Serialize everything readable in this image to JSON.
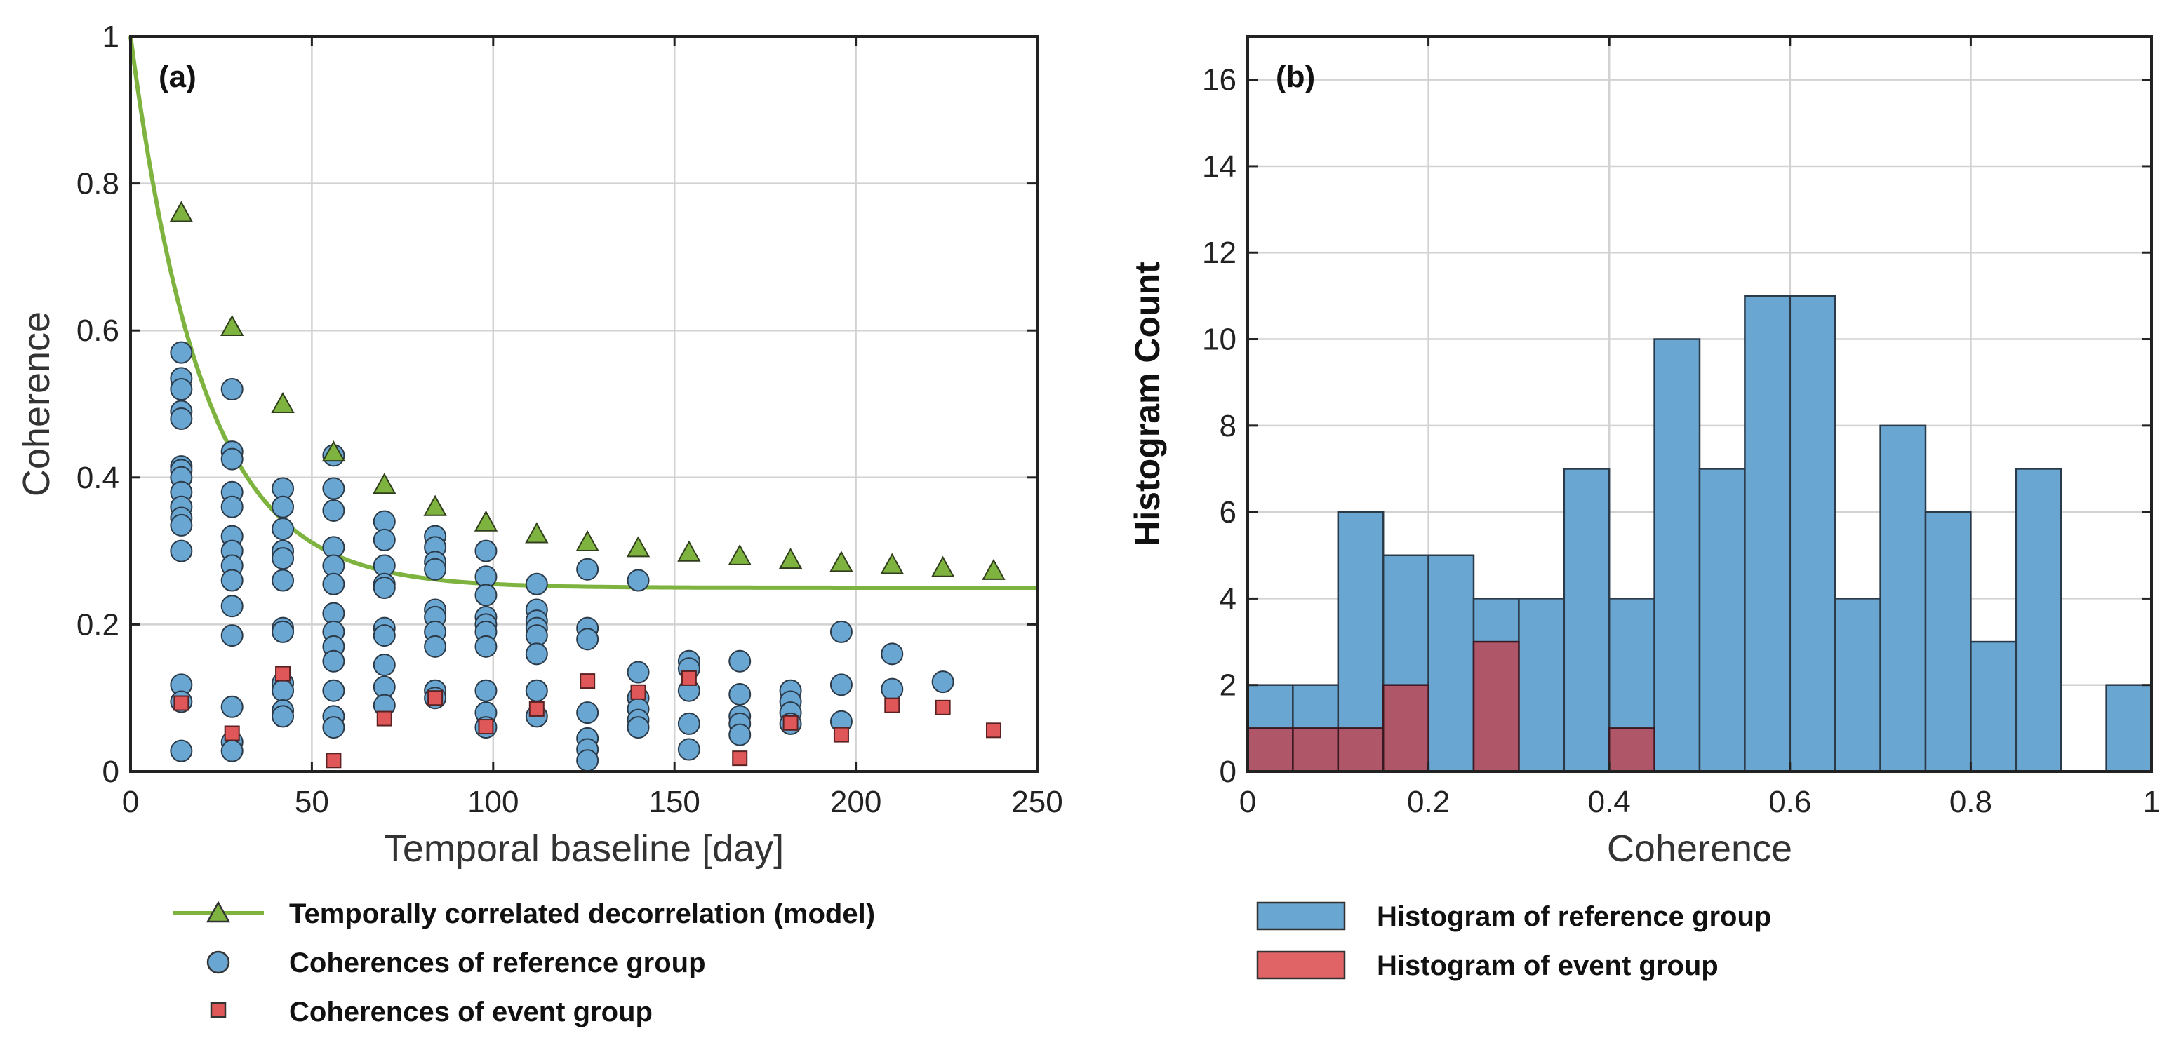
{
  "chart_data": [
    {
      "type": "scatter",
      "panel_label": "(a)",
      "xlabel": "Temporal baseline [day]",
      "ylabel": "Coherence",
      "xlim": [
        0,
        250
      ],
      "ylim": [
        0,
        1
      ],
      "xticks": [
        0,
        50,
        100,
        150,
        200,
        250
      ],
      "yticks": [
        0,
        0.2,
        0.4,
        0.6,
        0.8,
        1
      ],
      "ytick_labels": [
        "0",
        "0.2",
        "0.4",
        "0.6",
        "0.8",
        "1"
      ],
      "grid": true,
      "legend_position": "below",
      "colors": {
        "model": "#7fb33f",
        "reference": "#6aa6d2",
        "event": "#e0575a"
      },
      "series": [
        {
          "name": "Temporally correlated decorrelation (model)",
          "kind": "model-line",
          "markers_x": [
            14,
            28,
            42,
            56,
            70,
            84,
            98,
            112,
            126,
            140,
            154,
            168,
            182,
            196,
            210,
            224,
            238
          ],
          "markers_y": [
            0.76,
            0.605,
            0.5,
            0.434,
            0.39,
            0.36,
            0.339,
            0.323,
            0.312,
            0.304,
            0.298,
            0.293,
            0.288,
            0.284,
            0.281,
            0.277,
            0.273
          ]
        },
        {
          "name": "Coherences of reference group",
          "kind": "circle",
          "points": [
            [
              14,
              0.57
            ],
            [
              14,
              0.535
            ],
            [
              14,
              0.52
            ],
            [
              14,
              0.49
            ],
            [
              14,
              0.48
            ],
            [
              14,
              0.415
            ],
            [
              14,
              0.41
            ],
            [
              14,
              0.4
            ],
            [
              14,
              0.38
            ],
            [
              14,
              0.36
            ],
            [
              14,
              0.345
            ],
            [
              14,
              0.335
            ],
            [
              14,
              0.3
            ],
            [
              14,
              0.118
            ],
            [
              14,
              0.095
            ],
            [
              14,
              0.028
            ],
            [
              28,
              0.52
            ],
            [
              28,
              0.435
            ],
            [
              28,
              0.425
            ],
            [
              28,
              0.38
            ],
            [
              28,
              0.36
            ],
            [
              28,
              0.32
            ],
            [
              28,
              0.3
            ],
            [
              28,
              0.28
            ],
            [
              28,
              0.26
            ],
            [
              28,
              0.225
            ],
            [
              28,
              0.185
            ],
            [
              28,
              0.088
            ],
            [
              28,
              0.04
            ],
            [
              28,
              0.028
            ],
            [
              42,
              0.385
            ],
            [
              42,
              0.36
            ],
            [
              42,
              0.33
            ],
            [
              42,
              0.3
            ],
            [
              42,
              0.29
            ],
            [
              42,
              0.26
            ],
            [
              42,
              0.195
            ],
            [
              42,
              0.19
            ],
            [
              42,
              0.12
            ],
            [
              42,
              0.11
            ],
            [
              42,
              0.083
            ],
            [
              42,
              0.075
            ],
            [
              56,
              0.43
            ],
            [
              56,
              0.385
            ],
            [
              56,
              0.355
            ],
            [
              56,
              0.305
            ],
            [
              56,
              0.28
            ],
            [
              56,
              0.255
            ],
            [
              56,
              0.215
            ],
            [
              56,
              0.19
            ],
            [
              56,
              0.17
            ],
            [
              56,
              0.15
            ],
            [
              56,
              0.11
            ],
            [
              56,
              0.075
            ],
            [
              56,
              0.06
            ],
            [
              70,
              0.34
            ],
            [
              70,
              0.315
            ],
            [
              70,
              0.28
            ],
            [
              70,
              0.255
            ],
            [
              70,
              0.25
            ],
            [
              70,
              0.195
            ],
            [
              70,
              0.185
            ],
            [
              70,
              0.145
            ],
            [
              70,
              0.115
            ],
            [
              70,
              0.09
            ],
            [
              84,
              0.32
            ],
            [
              84,
              0.305
            ],
            [
              84,
              0.285
            ],
            [
              84,
              0.275
            ],
            [
              84,
              0.22
            ],
            [
              84,
              0.21
            ],
            [
              84,
              0.19
            ],
            [
              84,
              0.17
            ],
            [
              84,
              0.11
            ],
            [
              84,
              0.1
            ],
            [
              98,
              0.3
            ],
            [
              98,
              0.265
            ],
            [
              98,
              0.24
            ],
            [
              98,
              0.21
            ],
            [
              98,
              0.2
            ],
            [
              98,
              0.19
            ],
            [
              98,
              0.17
            ],
            [
              98,
              0.11
            ],
            [
              98,
              0.08
            ],
            [
              98,
              0.06
            ],
            [
              112,
              0.255
            ],
            [
              112,
              0.22
            ],
            [
              112,
              0.205
            ],
            [
              112,
              0.195
            ],
            [
              112,
              0.185
            ],
            [
              112,
              0.16
            ],
            [
              112,
              0.11
            ],
            [
              112,
              0.075
            ],
            [
              126,
              0.275
            ],
            [
              126,
              0.195
            ],
            [
              126,
              0.18
            ],
            [
              126,
              0.08
            ],
            [
              126,
              0.045
            ],
            [
              126,
              0.03
            ],
            [
              126,
              0.015
            ],
            [
              140,
              0.26
            ],
            [
              140,
              0.135
            ],
            [
              140,
              0.1
            ],
            [
              140,
              0.085
            ],
            [
              140,
              0.07
            ],
            [
              140,
              0.06
            ],
            [
              154,
              0.15
            ],
            [
              154,
              0.14
            ],
            [
              154,
              0.11
            ],
            [
              154,
              0.065
            ],
            [
              154,
              0.03
            ],
            [
              168,
              0.15
            ],
            [
              168,
              0.105
            ],
            [
              168,
              0.075
            ],
            [
              168,
              0.065
            ],
            [
              168,
              0.05
            ],
            [
              182,
              0.11
            ],
            [
              182,
              0.095
            ],
            [
              182,
              0.08
            ],
            [
              182,
              0.065
            ],
            [
              196,
              0.19
            ],
            [
              196,
              0.118
            ],
            [
              196,
              0.068
            ],
            [
              210,
              0.16
            ],
            [
              210,
              0.112
            ],
            [
              224,
              0.122
            ]
          ]
        },
        {
          "name": "Coherences of event group",
          "kind": "square",
          "points": [
            [
              14,
              0.093
            ],
            [
              28,
              0.052
            ],
            [
              42,
              0.133
            ],
            [
              56,
              0.015
            ],
            [
              70,
              0.072
            ],
            [
              84,
              0.1
            ],
            [
              98,
              0.061
            ],
            [
              112,
              0.085
            ],
            [
              126,
              0.123
            ],
            [
              140,
              0.108
            ],
            [
              154,
              0.127
            ],
            [
              168,
              0.018
            ],
            [
              182,
              0.066
            ],
            [
              196,
              0.05
            ],
            [
              210,
              0.09
            ],
            [
              224,
              0.087
            ],
            [
              238,
              0.056
            ]
          ]
        }
      ]
    },
    {
      "type": "bar",
      "panel_label": "(b)",
      "xlabel": "Coherence",
      "ylabel": "Histogram Count",
      "xlim": [
        0,
        1
      ],
      "ylim": [
        0,
        17
      ],
      "xticks": [
        0,
        0.2,
        0.4,
        0.6,
        0.8,
        1
      ],
      "xtick_labels": [
        "0",
        "0.2",
        "0.4",
        "0.6",
        "0.8",
        "1"
      ],
      "yticks": [
        0,
        2,
        4,
        6,
        8,
        10,
        12,
        14,
        16
      ],
      "bin_width": 0.05,
      "grid": true,
      "legend_position": "below",
      "colors": {
        "reference": "#6aa6d2",
        "event": "#b5505f"
      },
      "series": [
        {
          "name": "Histogram of reference group",
          "values": [
            2,
            2,
            6,
            5,
            5,
            4,
            4,
            7,
            4,
            10,
            7,
            11,
            11,
            4,
            8,
            6,
            3,
            7,
            0,
            2
          ]
        },
        {
          "name": "Histogram of event group",
          "values": [
            1,
            1,
            1,
            2,
            0,
            3,
            0,
            0,
            1,
            0,
            0,
            0,
            0,
            0,
            0,
            0,
            0,
            0,
            0,
            0
          ]
        }
      ]
    }
  ]
}
